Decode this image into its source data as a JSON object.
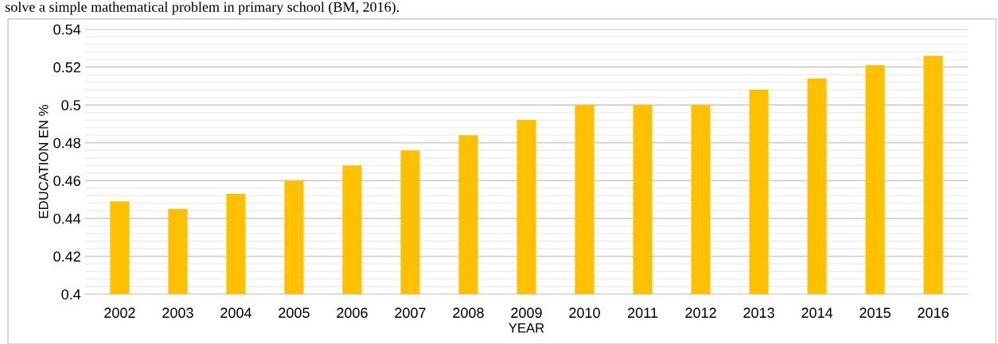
{
  "chart_data": {
    "type": "bar",
    "annotations": [
      "solve a simple mathematical problem in primary school (BM, 2016)."
    ],
    "xlabel": "YEAR",
    "ylabel": "EDUCATION EN %",
    "categories": [
      "2002",
      "2003",
      "2004",
      "2005",
      "2006",
      "2007",
      "2008",
      "2009",
      "2010",
      "2011",
      "2012",
      "2013",
      "2014",
      "2015",
      "2016"
    ],
    "values": [
      0.449,
      0.445,
      0.453,
      0.46,
      0.468,
      0.476,
      0.484,
      0.492,
      0.5,
      0.5,
      0.5,
      0.508,
      0.514,
      0.521,
      0.526
    ],
    "color": "#ffc000",
    "ylim": [
      0.4,
      0.54
    ],
    "yticks": [
      {
        "value": 0.4,
        "label": "0.4"
      },
      {
        "value": 0.42,
        "label": "0.42"
      },
      {
        "value": 0.44,
        "label": "0.44"
      },
      {
        "value": 0.46,
        "label": "0.46"
      },
      {
        "value": 0.48,
        "label": "0.48"
      },
      {
        "value": 0.5,
        "label": "0.5"
      },
      {
        "value": 0.52,
        "label": "0.52"
      },
      {
        "value": 0.54,
        "label": "0.54"
      }
    ],
    "grid": "y",
    "legend": false
  }
}
